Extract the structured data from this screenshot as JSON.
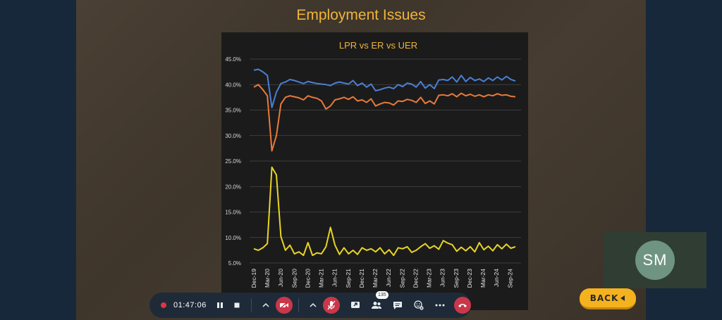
{
  "slide": {
    "title": "Employment Issues"
  },
  "toolbar": {
    "timer": "01:47:06",
    "participants_count": "135"
  },
  "video_tile": {
    "initials": "SM"
  },
  "back_button": {
    "label": "BACK"
  },
  "colors": {
    "lpr": "#4a7fd4",
    "er": "#e87a3a",
    "uer": "#e8d424",
    "title": "#f0b43a"
  },
  "chart_data": {
    "type": "line",
    "title": "LPR vs ER vs UER",
    "ylim": [
      5,
      45
    ],
    "yticks": [
      "5.0%",
      "10.0%",
      "15.0%",
      "20.0%",
      "25.0%",
      "30.0%",
      "35.0%",
      "40.0%",
      "45.0%"
    ],
    "xticks": [
      "Dec-19",
      "Mar-20",
      "Jun-20",
      "Sep-20",
      "Dec-20",
      "Mar-21",
      "Jun-21",
      "Sep-21",
      "Dec-21",
      "Mar-22",
      "Jun-22",
      "Sep-22",
      "Dec-22",
      "Mar-23",
      "Jun-23",
      "Sep-23",
      "Dec-23",
      "Mar-24",
      "Jun-24",
      "Sep-24"
    ],
    "grid": true,
    "series": [
      {
        "name": "LPR",
        "values": [
          42.8,
          43.0,
          42.5,
          41.8,
          35.5,
          38.5,
          40.2,
          40.5,
          41.0,
          40.8,
          40.5,
          40.2,
          40.6,
          40.4,
          40.2,
          40.1,
          40.0,
          39.8,
          40.3,
          40.5,
          40.3,
          40.1,
          40.8,
          39.8,
          40.3,
          39.5,
          40.1,
          38.8,
          39.0,
          39.3,
          39.5,
          39.2,
          40.0,
          39.6,
          40.3,
          40.1,
          39.5,
          40.6,
          39.3,
          40.0,
          39.2,
          40.9,
          41.0,
          40.8,
          41.5,
          40.5,
          41.8,
          40.6,
          41.4,
          40.8,
          41.1,
          40.6,
          41.3,
          40.8,
          41.5,
          40.9,
          41.6,
          41.0,
          40.7
        ]
      },
      {
        "name": "ER",
        "values": [
          39.5,
          40.0,
          39.0,
          37.8,
          27.0,
          30.0,
          36.2,
          37.5,
          37.8,
          37.6,
          37.4,
          37.0,
          37.8,
          37.5,
          37.3,
          36.8,
          35.2,
          35.8,
          37.0,
          37.2,
          37.5,
          37.1,
          37.6,
          36.8,
          37.0,
          36.5,
          37.2,
          35.8,
          36.2,
          36.5,
          36.4,
          36.0,
          36.8,
          36.7,
          37.1,
          36.9,
          36.5,
          37.5,
          36.3,
          36.8,
          36.2,
          37.9,
          38.0,
          37.8,
          38.2,
          37.6,
          38.3,
          37.8,
          38.1,
          37.7,
          38.0,
          37.6,
          38.0,
          37.8,
          38.2,
          37.9,
          38.0,
          37.7,
          37.6
        ]
      },
      {
        "name": "UER",
        "values": [
          7.8,
          7.5,
          8.0,
          8.8,
          23.8,
          22.3,
          10.2,
          7.5,
          8.5,
          6.8,
          7.2,
          6.5,
          9.0,
          6.5,
          7.0,
          6.8,
          8.2,
          12.0,
          8.5,
          6.7,
          8.0,
          6.8,
          7.5,
          6.7,
          8.0,
          7.5,
          7.8,
          7.2,
          8.0,
          6.8,
          7.6,
          6.5,
          8.0,
          7.8,
          8.2,
          7.1,
          7.5,
          8.2,
          8.8,
          7.9,
          8.4,
          7.7,
          9.4,
          8.9,
          8.6,
          7.3,
          8.1,
          7.4,
          8.2,
          7.2,
          9.0,
          7.6,
          8.3,
          7.4,
          8.6,
          7.8,
          8.7,
          7.9,
          8.2
        ]
      }
    ]
  }
}
